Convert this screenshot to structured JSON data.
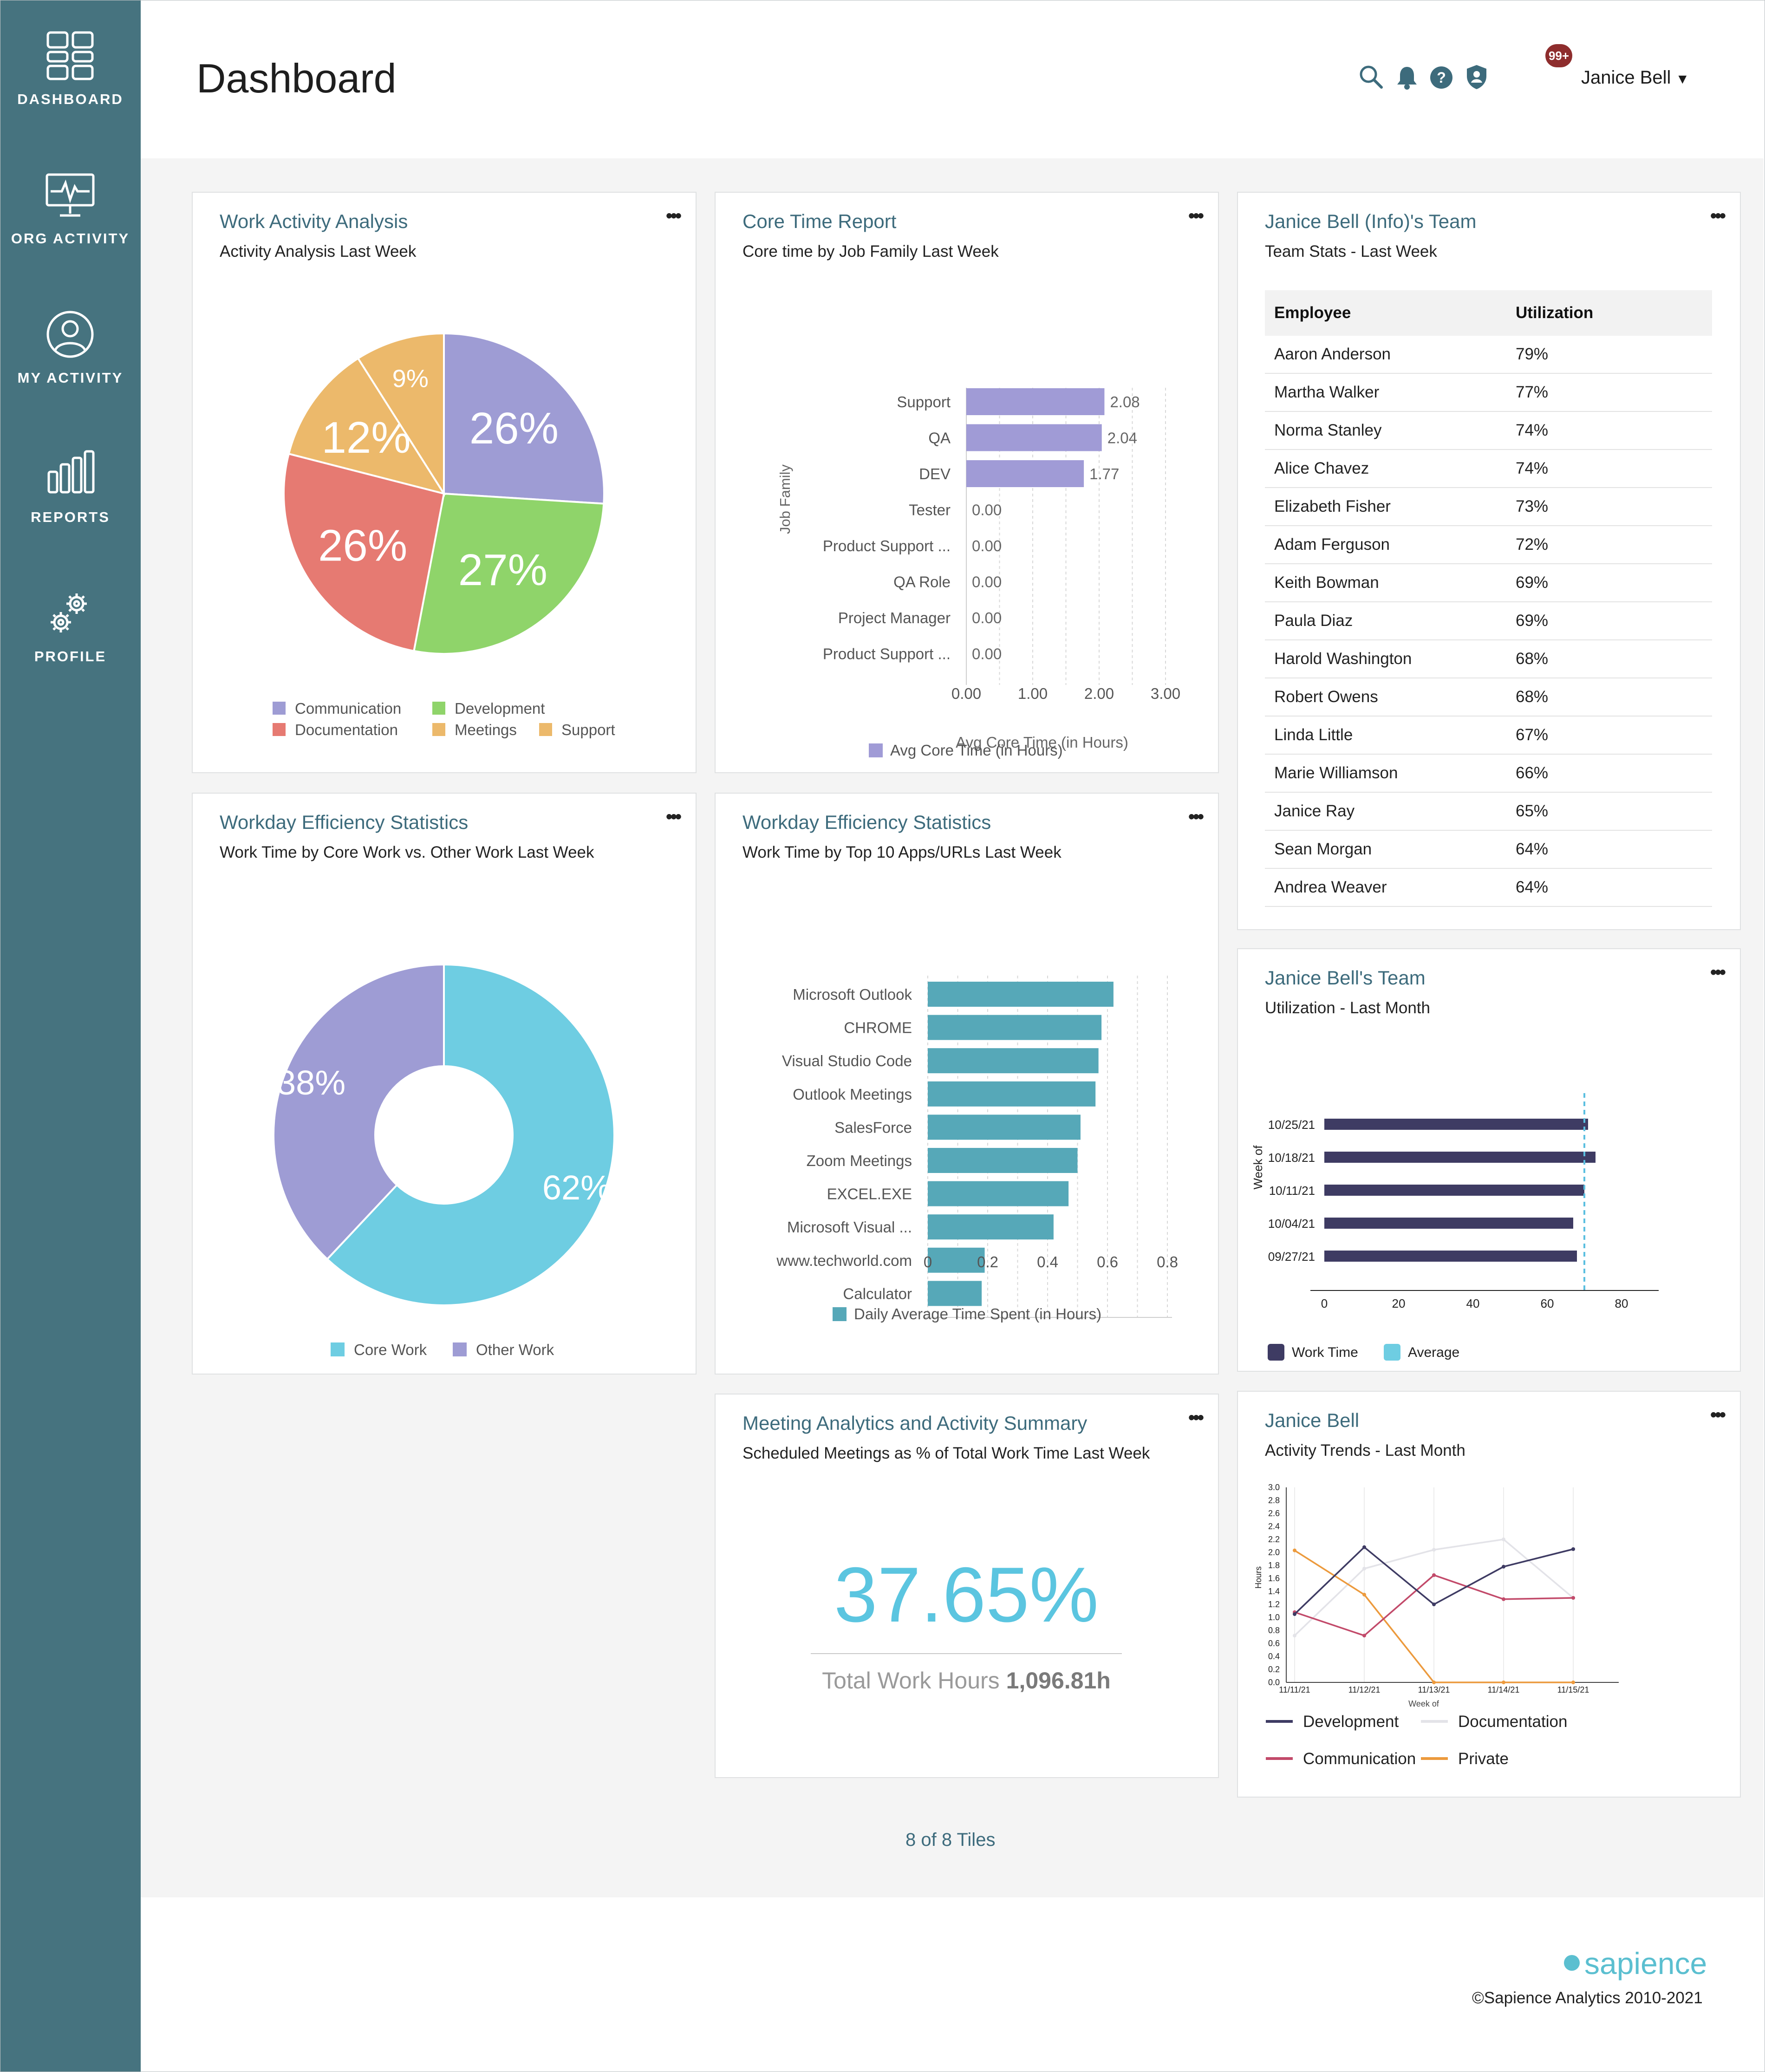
{
  "sidebar": {
    "items": [
      {
        "label": "DASHBOARD",
        "icon": "dashboard-grid-icon"
      },
      {
        "label": "ORG ACTIVITY",
        "icon": "monitor-pulse-icon"
      },
      {
        "label": "MY ACTIVITY",
        "icon": "user-circle-icon"
      },
      {
        "label": "REPORTS",
        "icon": "bar-chart-icon"
      },
      {
        "label": "PROFILE",
        "icon": "gears-icon"
      }
    ]
  },
  "header": {
    "title": "Dashboard",
    "notification_badge": "99+",
    "user_name": "Janice Bell",
    "icons": [
      "search-icon",
      "bell-icon",
      "help-icon",
      "shield-user-icon"
    ]
  },
  "tiles": {
    "work_activity": {
      "title": "Work Activity Analysis",
      "subtitle": "Activity Analysis Last Week",
      "chart_data": {
        "type": "pie",
        "slices": [
          {
            "name": "Communication",
            "value": 26,
            "label": "26%",
            "color": "#9e9cd4"
          },
          {
            "name": "Development",
            "value": 27,
            "label": "27%",
            "color": "#8fd46a"
          },
          {
            "name": "Documentation",
            "value": 26,
            "label": "26%",
            "color": "#e67a72"
          },
          {
            "name": "Meetings",
            "value": 12,
            "label": "12%",
            "color": "#ecb96b"
          },
          {
            "name": "Support",
            "value": 9,
            "label": "9%",
            "color": "#ecb96b"
          }
        ]
      }
    },
    "core_time": {
      "title": "Core Time Report",
      "subtitle": "Core time by Job Family Last Week",
      "chart_data": {
        "type": "bar",
        "orientation": "horizontal",
        "categories": [
          "Support",
          "QA",
          "DEV",
          "Tester",
          "Product Support ...",
          "QA Role",
          "Project Manager",
          "Product Support ..."
        ],
        "values": [
          2.08,
          2.04,
          1.77,
          0.0,
          0.0,
          0.0,
          0.0,
          0.0
        ],
        "value_labels": [
          "2.08",
          "2.04",
          "1.77",
          "0.00",
          "0.00",
          "0.00",
          "0.00",
          "0.00"
        ],
        "xlabel": "Avg Core Time (in Hours)",
        "ylabel": "Job Family",
        "xlim": [
          0,
          3
        ],
        "xticks": [
          "0.00",
          "1.00",
          "2.00",
          "3.00"
        ],
        "legend": "Avg Core Time (in Hours)",
        "color": "#a09bd6"
      }
    },
    "team_stats": {
      "title": "Janice Bell (Info)'s Team",
      "subtitle": "Team Stats - Last Week",
      "columns": [
        "Employee",
        "Utilization"
      ],
      "rows": [
        [
          "Aaron Anderson",
          "79%"
        ],
        [
          "Martha Walker",
          "77%"
        ],
        [
          "Norma Stanley",
          "74%"
        ],
        [
          "Alice Chavez",
          "74%"
        ],
        [
          "Elizabeth Fisher",
          "73%"
        ],
        [
          "Adam Ferguson",
          "72%"
        ],
        [
          "Keith Bowman",
          "69%"
        ],
        [
          "Paula Diaz",
          "69%"
        ],
        [
          "Harold Washington",
          "68%"
        ],
        [
          "Robert Owens",
          "68%"
        ],
        [
          "Linda Little",
          "67%"
        ],
        [
          "Marie Williamson",
          "66%"
        ],
        [
          "Janice Ray",
          "65%"
        ],
        [
          "Sean Morgan",
          "64%"
        ],
        [
          "Andrea Weaver",
          "64%"
        ]
      ]
    },
    "efficiency_core": {
      "title": "Workday Efficiency Statistics",
      "subtitle": "Work Time by Core Work vs. Other Work Last Week",
      "chart_data": {
        "type": "pie",
        "donut": true,
        "slices": [
          {
            "name": "Core Work",
            "value": 62,
            "label": "62%",
            "color": "#6ecde2"
          },
          {
            "name": "Other Work",
            "value": 38,
            "label": "38%",
            "color": "#9e9cd4"
          }
        ]
      }
    },
    "efficiency_apps": {
      "title": "Workday Efficiency Statistics",
      "subtitle": "Work Time by Top 10 Apps/URLs Last Week",
      "chart_data": {
        "type": "bar",
        "orientation": "horizontal",
        "categories": [
          "Microsoft Outlook",
          "CHROME",
          "Visual Studio Code",
          "Outlook Meetings",
          "SalesForce",
          "Zoom Meetings",
          "EXCEL.EXE",
          "Microsoft Visual ...",
          "www.techworld.com",
          "Calculator"
        ],
        "values": [
          0.62,
          0.58,
          0.57,
          0.56,
          0.51,
          0.5,
          0.47,
          0.42,
          0.19,
          0.18
        ],
        "xlim": [
          0,
          0.8
        ],
        "xticks": [
          "0",
          "0.2",
          "0.4",
          "0.6",
          "0.8"
        ],
        "legend": "Daily Average Time Spent (in Hours)",
        "color": "#56a8b8"
      }
    },
    "utilization": {
      "title": "Janice Bell's Team",
      "subtitle": "Utilization - Last Month",
      "chart_data": {
        "type": "bar",
        "orientation": "horizontal",
        "categories": [
          "10/25/21",
          "10/18/21",
          "10/11/21",
          "10/04/21",
          "09/27/21"
        ],
        "series": [
          {
            "name": "Work Time",
            "values": [
              71,
              73,
              70,
              67,
              68
            ],
            "color": "#3e3b63"
          }
        ],
        "average": 70,
        "average_label": "Average",
        "average_color": "#6ecde2",
        "ylabel": "Week of",
        "xlim": [
          0,
          90
        ],
        "xticks": [
          "0",
          "20",
          "40",
          "60",
          "80"
        ]
      }
    },
    "meetings": {
      "title": "Meeting Analytics and Activity Summary",
      "subtitle": "Scheduled Meetings as % of Total Work Time Last Week",
      "percentage": "37.65%",
      "total_label": "Total Work Hours",
      "total_value": "1,096.81h"
    },
    "activity_trends": {
      "title": "Janice Bell",
      "subtitle": "Activity Trends - Last Month",
      "chart_data": {
        "type": "line",
        "x": [
          "11/11/21",
          "11/12/21",
          "11/13/21",
          "11/14/21",
          "11/15/21"
        ],
        "xlabel": "Week of",
        "ylabel": "Hours",
        "ylim": [
          0,
          3.0
        ],
        "yticks": [
          "0.0",
          "0.2",
          "0.4",
          "0.6",
          "0.8",
          "1.0",
          "1.2",
          "1.4",
          "1.6",
          "1.8",
          "2.0",
          "2.2",
          "2.4",
          "2.6",
          "2.8",
          "3.0"
        ],
        "series": [
          {
            "name": "Development",
            "values": [
              1.05,
              2.08,
              1.2,
              1.78,
              2.05
            ],
            "color": "#3e3b63"
          },
          {
            "name": "Documentation",
            "values": [
              0.72,
              1.75,
              2.04,
              2.2,
              1.3
            ],
            "color": "#e3e3e8"
          },
          {
            "name": "Communication",
            "values": [
              1.08,
              0.72,
              1.65,
              1.28,
              1.3
            ],
            "color": "#c24a6a"
          },
          {
            "name": "Private",
            "values": [
              2.03,
              1.35,
              0.0,
              0.0,
              0.0
            ],
            "color": "#ec9a3d"
          }
        ]
      }
    }
  },
  "footer": {
    "tiles_count": "8 of 8 Tiles",
    "brand": "sapience",
    "copyright": "©Sapience Analytics 2010-2021"
  }
}
